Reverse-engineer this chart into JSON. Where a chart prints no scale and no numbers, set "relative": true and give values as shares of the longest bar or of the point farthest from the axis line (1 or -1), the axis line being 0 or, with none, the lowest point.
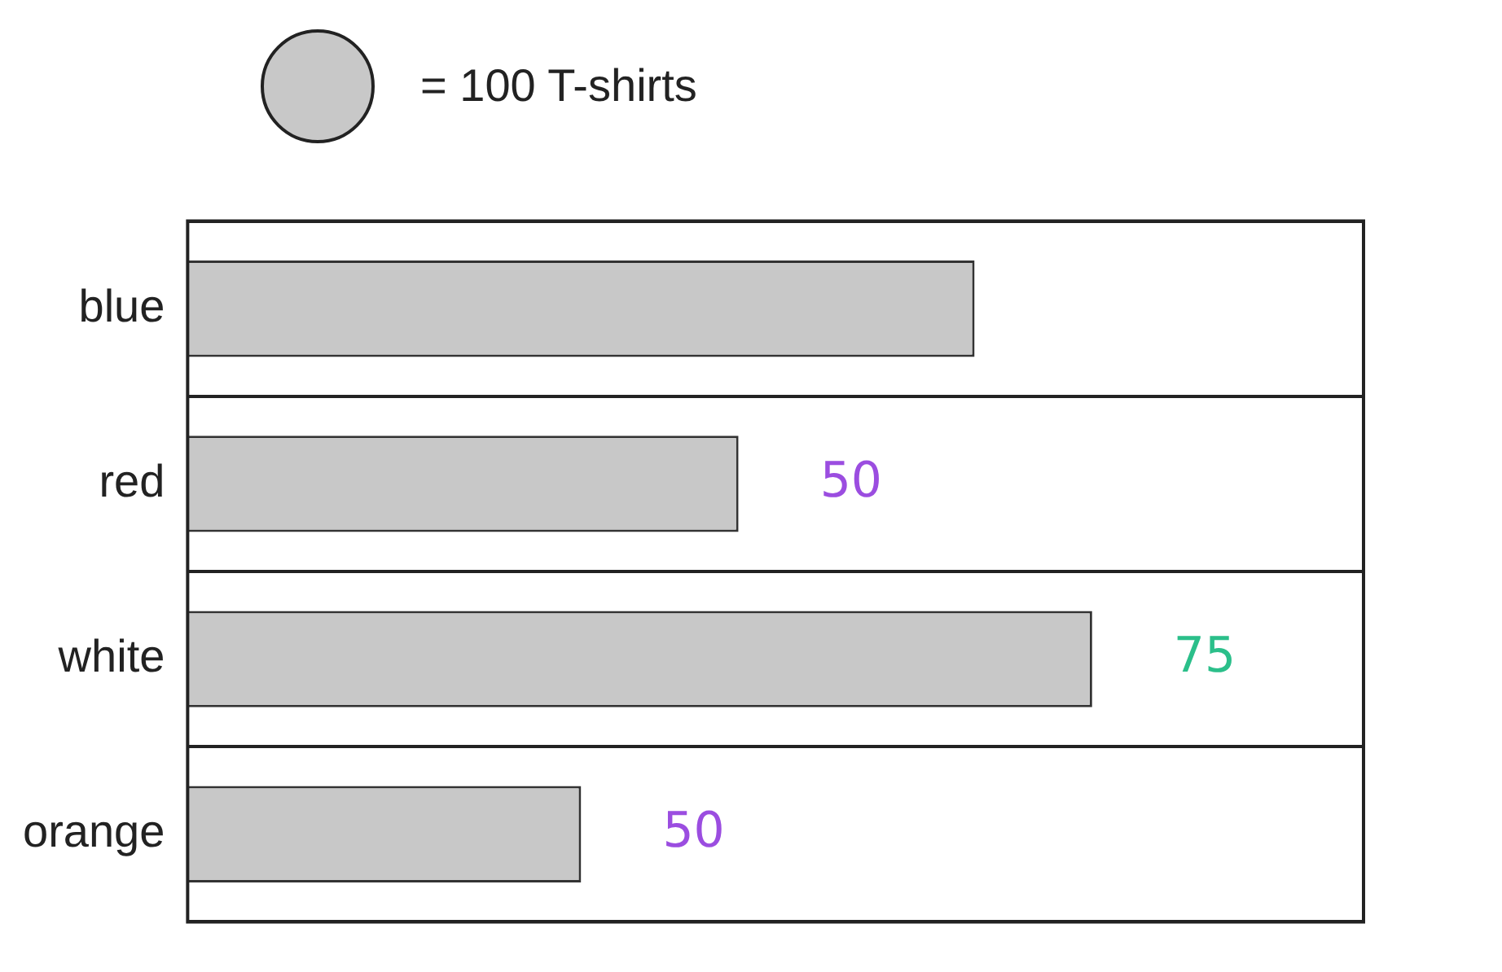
{
  "chart_data": {
    "type": "bar",
    "orientation": "horizontal",
    "relative": true,
    "categories": [
      "blue",
      "red",
      "white",
      "orange"
    ],
    "values": [
      0.87,
      0.609,
      1,
      0.435
    ],
    "color": "#c8c8c8",
    "grid": "y",
    "annotations": [
      "= 100 T-shirts",
      {
        "text": "50",
        "x": 0.609,
        "y": "red"
      },
      {
        "text": "75",
        "x": 1,
        "y": "white"
      },
      {
        "text": "50",
        "x": 0.435,
        "y": "orange"
      }
    ]
  }
}
